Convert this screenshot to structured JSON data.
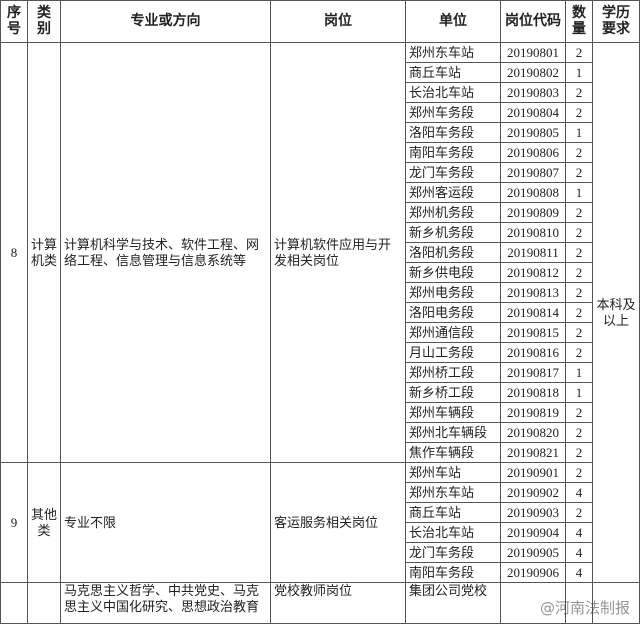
{
  "table": {
    "header": [
      "序号",
      "类别",
      "专业或方向",
      "岗位",
      "单位",
      "岗位代码",
      "数量",
      "学历要求"
    ],
    "education": "本科及以上",
    "groups": [
      {
        "no": 8,
        "category": "计算机类",
        "major": "计算机科学与技术、软件工程、网络工程、信息管理与信息系统等",
        "post": "计算机软件应用与开发相关岗位",
        "rows": [
          [
            "郑州东车站",
            "20190801",
            2
          ],
          [
            "商丘车站",
            "20190802",
            1
          ],
          [
            "长治北车站",
            "20190803",
            2
          ],
          [
            "郑州车务段",
            "20190804",
            2
          ],
          [
            "洛阳车务段",
            "20190805",
            1
          ],
          [
            "南阳车务段",
            "20190806",
            2
          ],
          [
            "龙门车务段",
            "20190807",
            2
          ],
          [
            "郑州客运段",
            "20190808",
            1
          ],
          [
            "郑州机务段",
            "20190809",
            2
          ],
          [
            "新乡机务段",
            "20190810",
            2
          ],
          [
            "洛阳机务段",
            "20190811",
            2
          ],
          [
            "新乡供电段",
            "20190812",
            2
          ],
          [
            "郑州电务段",
            "20190813",
            2
          ],
          [
            "洛阳电务段",
            "20190814",
            2
          ],
          [
            "郑州通信段",
            "20190815",
            2
          ],
          [
            "月山工务段",
            "20190816",
            2
          ],
          [
            "郑州桥工段",
            "20190817",
            1
          ],
          [
            "新乡桥工段",
            "20190818",
            1
          ],
          [
            "郑州车辆段",
            "20190819",
            2
          ],
          [
            "郑州北车辆段",
            "20190820",
            2
          ],
          [
            "焦作车辆段",
            "20190821",
            2
          ]
        ]
      },
      {
        "no": 9,
        "category": "其他类",
        "major": "专业不限",
        "post": "客运服务相关岗位",
        "rows": [
          [
            "郑州车站",
            "20190901",
            2
          ],
          [
            "郑州东车站",
            "20190902",
            4
          ],
          [
            "商丘车站",
            "20190903",
            2
          ],
          [
            "长治北车站",
            "20190904",
            4
          ],
          [
            "龙门车务段",
            "20190905",
            4
          ],
          [
            "南阳车务段",
            "20190906",
            4
          ]
        ]
      }
    ],
    "last_row": {
      "major": "马克思主义哲学、中共党史、马克思主义中国化研究、思想政治教育",
      "post": "党校教师岗位",
      "unit": "集团公司党校"
    },
    "watermark": "@河南法制报"
  }
}
